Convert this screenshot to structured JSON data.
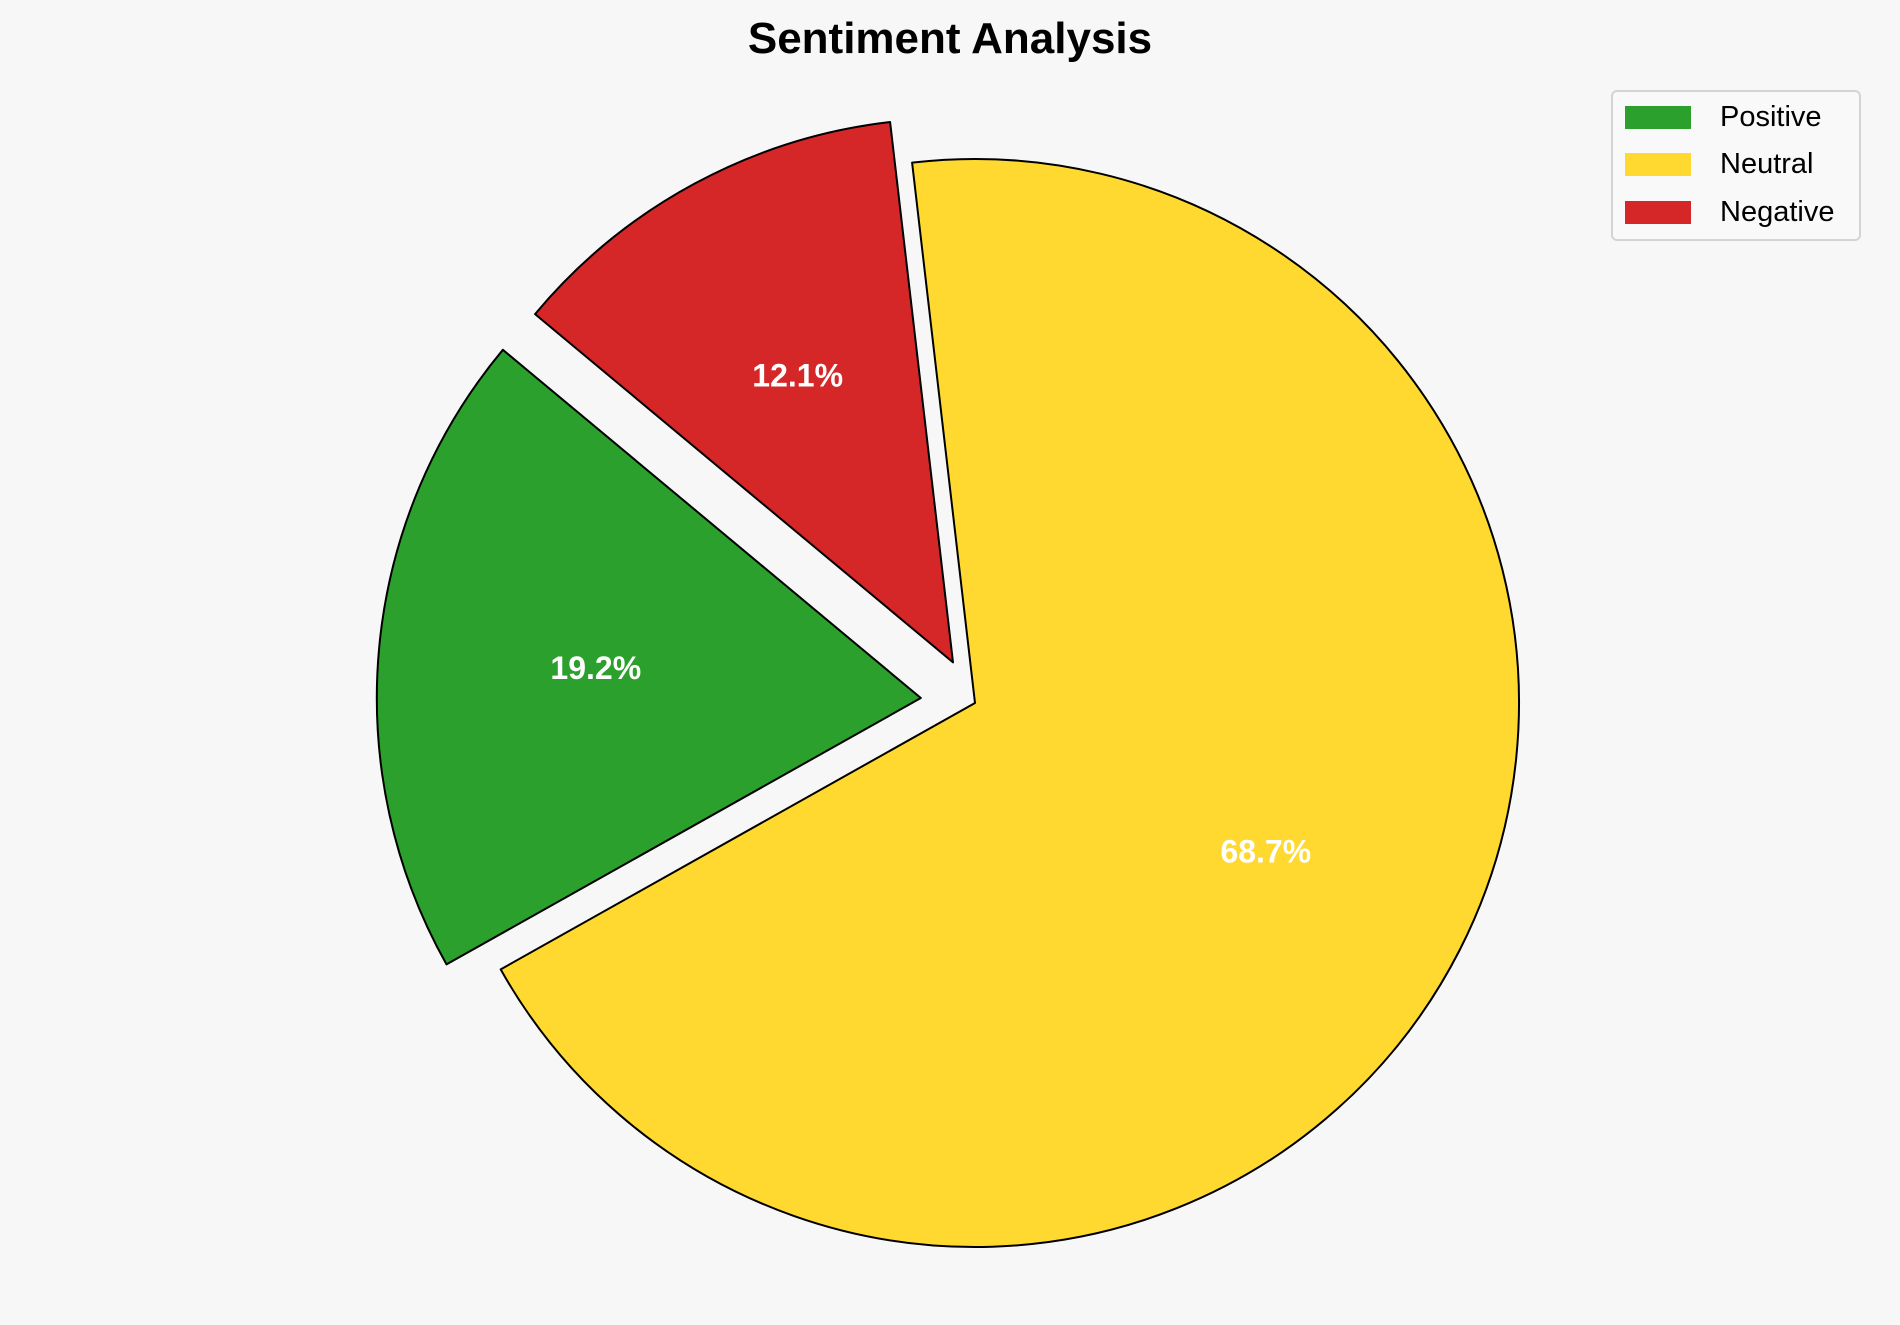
{
  "chart_data": {
    "type": "pie",
    "title": "Sentiment Analysis",
    "categories": [
      "Positive",
      "Neutral",
      "Negative"
    ],
    "values": [
      19.2,
      68.7,
      12.1
    ],
    "labels": [
      "19.2%",
      "68.7%",
      "12.1%"
    ],
    "colors": [
      "#2ca02c",
      "#ffd92f",
      "#d62728"
    ],
    "exploded": [
      "Positive",
      "Negative"
    ],
    "legend": {
      "placement": "top-right",
      "entries": [
        "Positive",
        "Neutral",
        "Negative"
      ]
    }
  }
}
